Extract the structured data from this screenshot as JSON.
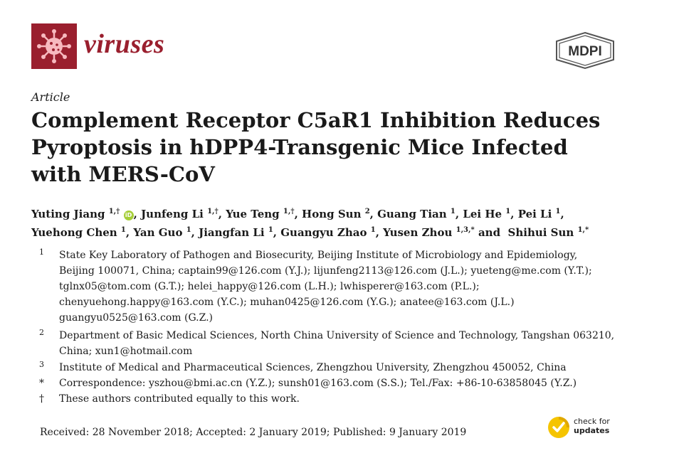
{
  "header": {
    "journal_name": "viruses",
    "publisher_logo_text": "MDPI",
    "journal_logo_icon": "virus-icon",
    "brand_color": "#9a1f2e"
  },
  "article": {
    "type": "Article",
    "title_lines": [
      "Complement Receptor C5aR1 Inhibition Reduces",
      "Pyroptosis in hDPP4-Transgenic Mice Infected",
      "with MERS-CoV"
    ]
  },
  "authors": [
    {
      "name": "Yuting Jiang",
      "sup": "1,†",
      "orcid": true,
      "sep": ", "
    },
    {
      "name": "Junfeng Li",
      "sup": "1,†",
      "sep": ", "
    },
    {
      "name": "Yue Teng",
      "sup": "1,†",
      "sep": ", "
    },
    {
      "name": "Hong Sun",
      "sup": "2",
      "sep": ", "
    },
    {
      "name": "Guang Tian",
      "sup": "1",
      "sep": ", "
    },
    {
      "name": "Lei He",
      "sup": "1",
      "sep": ", "
    },
    {
      "name": "Pei Li",
      "sup": "1",
      "sep": ","
    },
    {
      "name": "Yuehong Chen",
      "sup": "1",
      "sep": ", "
    },
    {
      "name": "Yan Guo",
      "sup": "1",
      "sep": ", "
    },
    {
      "name": "Jiangfan Li",
      "sup": "1",
      "sep": ", "
    },
    {
      "name": "Guangyu Zhao",
      "sup": "1",
      "sep": ", "
    },
    {
      "name": "Yusen Zhou",
      "sup": "1,3,*",
      "sep": " and "
    },
    {
      "name": "Shihui Sun",
      "sup": "1,*",
      "sep": ""
    }
  ],
  "orcid_label": "iD",
  "affiliations": [
    {
      "mark": "1",
      "lines": [
        "State Key Laboratory of Pathogen and Biosecurity, Beijing Institute of Microbiology and Epidemiology,",
        "Beijing 100071, China; captain99@126.com (Y.J.); lijunfeng2113@126.com (J.L.); yueteng@me.com (Y.T.);",
        "tglnx05@tom.com (G.T.); helei_happy@126.com (L.H.); lwhisperer@163.com (P.L.);",
        "chenyuehong.happy@163.com (Y.C.); muhan0425@126.com (Y.G.); anatee@163.com (J.L.)",
        "guangyu0525@163.com (G.Z.)"
      ]
    },
    {
      "mark": "2",
      "lines": [
        "Department of Basic Medical Sciences, North China University of Science and Technology, Tangshan 063210,",
        "China; xun1@hotmail.com"
      ]
    },
    {
      "mark": "3",
      "lines": [
        "Institute of Medical and Pharmaceutical Sciences, Zhengzhou University, Zhengzhou 450052, China"
      ]
    },
    {
      "mark": "*",
      "lines": [
        "Correspondence: yszhou@bmi.ac.cn (Y.Z.); sunsh01@163.com (S.S.); Tel./Fax: +86-10-63858045 (Y.Z.)"
      ]
    },
    {
      "mark": "†",
      "lines": [
        "These authors contributed equally to this work."
      ]
    }
  ],
  "dates": "Received: 28 November 2018; Accepted: 2 January 2019; Published: 9 January 2019",
  "check_updates": {
    "line1": "check for",
    "line2": "updates",
    "icon": "check-badge-icon",
    "color": "#f5c400"
  }
}
